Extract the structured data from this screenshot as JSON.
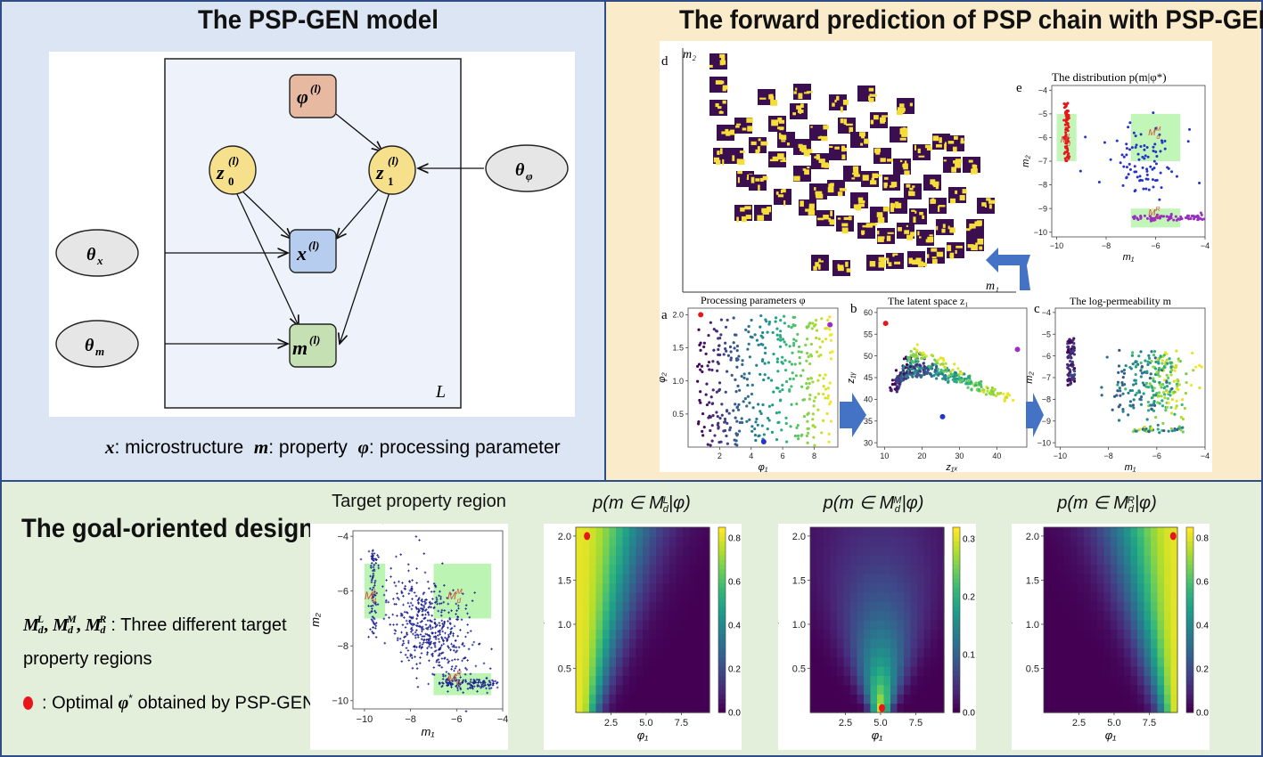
{
  "model_panel": {
    "title": "The PSP-GEN model",
    "plate_label": "L",
    "nodes": {
      "phi": {
        "main": "φ",
        "sup": "(l)"
      },
      "z0": {
        "main": "z",
        "sub": "0",
        "sup": "(l)"
      },
      "z1": {
        "main": "z",
        "sub": "1",
        "sup": "(l)"
      },
      "x": {
        "main": "x",
        "sup": "(l)"
      },
      "m": {
        "main": "m",
        "sup": "(l)"
      },
      "theta_x": {
        "main": "θ",
        "sub": "x"
      },
      "theta_m": {
        "main": "θ",
        "sub": "m"
      },
      "theta_phi": {
        "main": "θ",
        "sub": "φ"
      }
    },
    "legend": {
      "x_sym": "x",
      "x_text": ": microstructure",
      "m_sym": "m",
      "m_text": ": property",
      "phi_sym": "φ",
      "phi_text": ": processing parameter"
    },
    "colors": {
      "phi": "#e8b9a1",
      "z": "#f6e08c",
      "x": "#b6cdf0",
      "m": "#c5e0b3",
      "theta": "#e6e6e6"
    }
  },
  "forward_panel": {
    "title": "The forward prediction of PSP chain with PSP-GEN",
    "d": {
      "letter": "d",
      "xlabel": "m₁",
      "ylabel": "m₂"
    },
    "e": {
      "letter": "e",
      "title": "The distribution p(m|φ*)",
      "xlabel": "m₁",
      "ylabel": "m₂",
      "xticks": [
        "−10",
        "−8",
        "−6",
        "−4"
      ],
      "yticks": [
        "−4",
        "−5",
        "−6",
        "−7",
        "−8",
        "−9",
        "−10"
      ],
      "regions": {
        "L": "M",
        "L_sup": "L",
        "M": "M",
        "M_sup": "M",
        "R": "M",
        "R_sup": "R"
      },
      "region_sub": "d"
    },
    "a": {
      "letter": "a",
      "title": "Processing parameters φ",
      "xlabel": "φ₁",
      "ylabel": "φ₂",
      "xticks": [
        "2",
        "4",
        "6",
        "8"
      ],
      "yticks": [
        "2.0",
        "1.5",
        "1.0",
        "0.5"
      ]
    },
    "b": {
      "letter": "b",
      "title": "The latent space z₁",
      "xlabel": "z₁ₓ",
      "ylabel": "z₁ᵧ",
      "xticks": [
        "10",
        "20",
        "30",
        "40"
      ],
      "yticks": [
        "60",
        "55",
        "50",
        "45",
        "40",
        "35",
        "30"
      ]
    },
    "c": {
      "letter": "c",
      "title": "The log-permeability m",
      "xlabel": "m₁",
      "ylabel": "m₂",
      "xticks": [
        "−10",
        "−8",
        "−6",
        "−4"
      ],
      "yticks": [
        "−4",
        "−5",
        "−6",
        "−7",
        "−8",
        "−9",
        "−10"
      ]
    }
  },
  "goal_panel": {
    "title": "The goal-oriented design",
    "regions_text": {
      "sym1": "M",
      "sup1": "L",
      "sym2": "M",
      "sup2": "M",
      "sym3": "M",
      "sup3": "R",
      "sub": "d",
      "sep": ", ",
      "desc_line1": ": Three different target",
      "desc_line2": "property regions"
    },
    "optimal_text": {
      "prefix": ": Optimal",
      "sym": "φ",
      "sup": "*",
      "suffix": "obtained by PSP-GEN"
    },
    "target": {
      "title": "Target property region",
      "xlabel": "m₁",
      "ylabel": "m₂",
      "xticks": [
        "−10",
        "−8",
        "−6",
        "−4"
      ],
      "yticks": [
        "−4",
        "−6",
        "−8",
        "−10"
      ],
      "labels": {
        "L": "M",
        "L_sup": "L",
        "M": "M",
        "M_sup": "M",
        "R": "M",
        "R_sup": "R",
        "sub": "d"
      }
    },
    "heatmaps": [
      {
        "title_pre": "p(m ∈ M",
        "sup": "L",
        "sub": "d",
        "title_post": "|φ)",
        "xlabel": "φ₁",
        "ylabel": "φ₂",
        "xticks": [
          "2.5",
          "5.0",
          "7.5"
        ],
        "yticks": [
          "2.0",
          "1.5",
          "1.0",
          "0.5"
        ],
        "cbar": [
          "0.8",
          "0.6",
          "0.4",
          "0.2",
          "0.0"
        ]
      },
      {
        "title_pre": "p(m ∈ M",
        "sup": "M",
        "sub": "d",
        "title_post": "|φ)",
        "xlabel": "φ₁",
        "ylabel": "φ₂",
        "xticks": [
          "2.5",
          "5.0",
          "7.5"
        ],
        "yticks": [
          "2.0",
          "1.5",
          "1.0",
          "0.5"
        ],
        "cbar": [
          "0.3",
          "0.2",
          "0.1",
          "0.0"
        ]
      },
      {
        "title_pre": "p(m ∈ M",
        "sup": "R",
        "sub": "d",
        "title_post": "|φ)",
        "xlabel": "φ₁",
        "ylabel": "φ₂",
        "xticks": [
          "2.5",
          "5.0",
          "7.5"
        ],
        "yticks": [
          "2.0",
          "1.5",
          "1.0",
          "0.5"
        ],
        "cbar": [
          "0.8",
          "0.6",
          "0.4",
          "0.2",
          "0.0"
        ]
      }
    ]
  },
  "chart_data": [
    {
      "type": "scatter",
      "title": "Processing parameters φ",
      "xlabel": "φ₁",
      "ylabel": "φ₂",
      "xlim": [
        0,
        9.5
      ],
      "ylim": [
        0,
        2.1
      ],
      "n_points": 400
    },
    {
      "type": "scatter",
      "title": "The latent space z₁",
      "xlabel": "z₁ₓ",
      "ylabel": "z₁ᵧ",
      "xlim": [
        8,
        48
      ],
      "ylim": [
        29,
        61
      ],
      "n_points": 400
    },
    {
      "type": "scatter",
      "title": "The log-permeability m",
      "xlabel": "m₁",
      "ylabel": "m₂",
      "xlim": [
        -10.2,
        -4
      ],
      "ylim": [
        -10.2,
        -3.8
      ],
      "n_points": 400
    },
    {
      "type": "scatter",
      "title": "The distribution p(m|φ*)",
      "xlabel": "m₁",
      "ylabel": "m₂",
      "xlim": [
        -10.2,
        -4
      ],
      "ylim": [
        -10.2,
        -3.8
      ],
      "regions": [
        {
          "name": "M_d^L",
          "m1": [
            -10,
            -9.2
          ],
          "m2": [
            -7.0,
            -5.0
          ]
        },
        {
          "name": "M_d^M",
          "m1": [
            -7,
            -5
          ],
          "m2": [
            -7.0,
            -5.0
          ]
        },
        {
          "name": "M_d^R",
          "m1": [
            -7,
            -5
          ],
          "m2": [
            -9.8,
            -9.0
          ]
        }
      ]
    },
    {
      "type": "scatter",
      "title": "Target property region",
      "xlabel": "m₁",
      "ylabel": "m₂",
      "xlim": [
        -10.5,
        -4
      ],
      "ylim": [
        -10.3,
        -3.8
      ],
      "n_points": 1500
    },
    {
      "type": "heatmap",
      "title": "p(m ∈ M_d^L|φ)",
      "xlabel": "φ₁",
      "ylabel": "φ₂",
      "xlim": [
        0,
        9.5
      ],
      "ylim": [
        0,
        2.1
      ],
      "zlim": [
        0,
        0.85
      ],
      "optimal": [
        0.8,
        2.0
      ]
    },
    {
      "type": "heatmap",
      "title": "p(m ∈ M_d^M|φ)",
      "xlabel": "φ₁",
      "ylabel": "φ₂",
      "xlim": [
        0,
        9.5
      ],
      "ylim": [
        0,
        2.1
      ],
      "zlim": [
        0,
        0.32
      ],
      "optimal": [
        5.1,
        0.05
      ]
    },
    {
      "type": "heatmap",
      "title": "p(m ∈ M_d^R|φ)",
      "xlabel": "φ₁",
      "ylabel": "φ₂",
      "xlim": [
        0,
        9.5
      ],
      "ylim": [
        0,
        2.1
      ],
      "zlim": [
        0,
        0.85
      ],
      "optimal": [
        9.2,
        2.0
      ]
    }
  ]
}
